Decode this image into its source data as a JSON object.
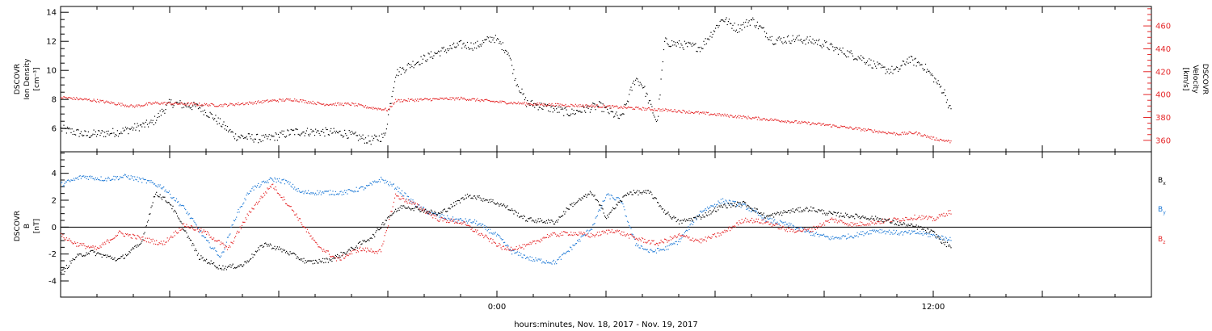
{
  "chart_data": [
    {
      "type": "scatter",
      "panel": "top",
      "left_axis_label_lines": [
        "DSCOVR",
        "Ion Density",
        "[cm⁻³]"
      ],
      "right_axis_label_lines": [
        "DSCOVR",
        "Velocity",
        "[km/s]"
      ],
      "x_range_hours": [
        -12,
        18
      ],
      "left_ylim": [
        4.4,
        14.4
      ],
      "right_ylim": [
        350,
        477
      ],
      "left_ticks": [
        "6",
        "8",
        "10",
        "12",
        "14"
      ],
      "right_ticks": [
        "360",
        "380",
        "400",
        "420",
        "440",
        "460"
      ],
      "series": [
        {
          "axis": "left",
          "color": "#000000",
          "x": [
            -12,
            -11.3,
            -10.4,
            -9.5,
            -9.0,
            -8.2,
            -7.8,
            -7.2,
            -6.4,
            -5.6,
            -4.8,
            -4.2,
            -3.5,
            -3.1,
            -2.8,
            -2.4,
            -1.6,
            -1.0,
            -0.6,
            -0.1,
            0.3,
            0.5,
            0.8,
            1.5,
            2.0,
            2.8,
            3.4,
            3.8,
            4.0,
            4.4,
            4.6,
            5.0,
            5.6,
            6.2,
            6.6,
            7.0,
            7.6,
            8.2,
            8.8,
            9.4,
            10.0,
            10.6,
            11.0,
            11.3,
            11.7,
            12.0,
            12.3,
            12.5
          ],
          "y": [
            6.0,
            5.6,
            5.8,
            6.4,
            7.8,
            7.5,
            6.8,
            5.5,
            5.3,
            5.8,
            5.8,
            5.7,
            5.2,
            5.5,
            9.8,
            10.4,
            11.3,
            11.8,
            11.7,
            12.3,
            11.3,
            9.4,
            7.8,
            7.4,
            7.1,
            7.6,
            6.7,
            9.5,
            9.0,
            6.4,
            12.0,
            11.8,
            11.6,
            13.6,
            12.9,
            13.5,
            12.1,
            12.2,
            12.0,
            11.4,
            10.9,
            10.1,
            10.0,
            10.8,
            10.4,
            9.5,
            8.5,
            7.0
          ]
        },
        {
          "axis": "right",
          "color": "#e5282a",
          "x": [
            -12,
            -11,
            -10,
            -9.4,
            -8.4,
            -7.6,
            -6.8,
            -6.2,
            -5.6,
            -4.8,
            -4.0,
            -3.5,
            -3.0,
            -2.8,
            -2.0,
            -1.0,
            0.0,
            1.0,
            2.0,
            3.0,
            4.0,
            5.0,
            6.0,
            7.0,
            8.0,
            9.0,
            10.0,
            11.0,
            11.5,
            12.0,
            12.5
          ],
          "y": [
            398,
            395,
            390,
            393,
            392,
            391,
            393,
            395,
            396,
            392,
            392,
            389,
            387,
            395,
            396,
            397,
            394,
            392,
            391,
            390,
            388,
            386,
            383,
            380,
            377,
            374,
            370,
            366,
            367,
            362,
            359
          ]
        }
      ]
    },
    {
      "type": "scatter",
      "panel": "bottom",
      "left_axis_label_lines": [
        "DSCOVR",
        "B",
        "[nT]"
      ],
      "x_range_hours": [
        -12,
        18
      ],
      "ylim": [
        -5.2,
        5.6
      ],
      "y_ticks": [
        "-4",
        "-2",
        "0",
        "2",
        "4"
      ],
      "x_tick_labels": [
        "0:00",
        "12:00"
      ],
      "xlabel": "hours:minutes, Nov. 18, 2017 - Nov. 19, 2017",
      "legend_entries": [
        {
          "label": "B",
          "sub": "x",
          "color": "#000000"
        },
        {
          "label": "B",
          "sub": "y",
          "color": "#1f7ad6"
        },
        {
          "label": "B",
          "sub": "z",
          "color": "#e5282a"
        }
      ],
      "series": [
        {
          "name": "Bx",
          "color": "#000000",
          "x": [
            -12,
            -11.6,
            -11.2,
            -10.4,
            -9.8,
            -9.4,
            -9.0,
            -8.2,
            -7.6,
            -7.0,
            -6.4,
            -5.8,
            -5.2,
            -4.6,
            -4.0,
            -3.4,
            -3.0,
            -2.6,
            -2.2,
            -1.6,
            -0.8,
            -0.2,
            0.2,
            0.8,
            1.6,
            2.0,
            2.6,
            3.0,
            3.6,
            4.2,
            4.6,
            5.0,
            5.6,
            6.2,
            6.8,
            7.4,
            8.0,
            8.6,
            9.2,
            10.0,
            10.6,
            11.0,
            11.6,
            12.0,
            12.3,
            12.5
          ],
          "y": [
            -3.4,
            -2.2,
            -1.8,
            -2.4,
            -1.2,
            2.6,
            1.8,
            -2.2,
            -3.0,
            -2.8,
            -1.2,
            -1.8,
            -2.6,
            -2.4,
            -1.6,
            -0.6,
            0.8,
            1.6,
            1.4,
            1.0,
            2.4,
            2.0,
            1.6,
            0.6,
            0.4,
            1.6,
            2.6,
            0.8,
            2.6,
            2.6,
            1.2,
            0.4,
            0.8,
            1.6,
            1.8,
            0.8,
            1.2,
            1.4,
            1.0,
            0.8,
            0.6,
            0.3,
            0.0,
            -0.4,
            -1.2,
            -1.4
          ]
        },
        {
          "name": "By",
          "color": "#1f7ad6",
          "x": [
            -12,
            -11.8,
            -11.4,
            -10.8,
            -10.2,
            -9.6,
            -9.2,
            -8.6,
            -8.0,
            -7.6,
            -7.2,
            -6.8,
            -6.2,
            -5.8,
            -5.4,
            -4.8,
            -4.2,
            -3.6,
            -3.2,
            -2.8,
            -2.2,
            -1.8,
            -1.2,
            -0.6,
            0.0,
            0.4,
            1.0,
            1.6,
            2.0,
            2.6,
            3.0,
            3.4,
            3.8,
            4.2,
            4.6,
            5.0,
            5.6,
            6.2,
            6.8,
            7.4,
            8.0,
            8.6,
            9.2,
            9.8,
            10.4,
            11.0,
            11.6,
            12.0,
            12.3,
            12.5
          ],
          "y": [
            3.2,
            3.4,
            3.8,
            3.6,
            3.8,
            3.4,
            3.0,
            1.4,
            -1.0,
            -2.2,
            0.8,
            2.8,
            3.6,
            3.4,
            2.6,
            2.6,
            2.6,
            3.0,
            3.6,
            3.0,
            1.6,
            1.0,
            0.6,
            0.4,
            -0.6,
            -1.8,
            -2.4,
            -2.6,
            -1.6,
            0.0,
            2.4,
            2.0,
            -1.2,
            -1.8,
            -1.6,
            -1.0,
            1.2,
            2.0,
            1.6,
            0.6,
            0.2,
            -0.4,
            -0.8,
            -0.6,
            -0.2,
            -0.4,
            -0.4,
            -0.6,
            -0.8,
            -0.8
          ]
        },
        {
          "name": "Bz",
          "color": "#e5282a",
          "x": [
            -12,
            -11.6,
            -11.0,
            -10.4,
            -9.8,
            -9.2,
            -8.6,
            -8.0,
            -7.4,
            -6.8,
            -6.2,
            -5.6,
            -5.0,
            -4.4,
            -3.8,
            -3.2,
            -2.8,
            -2.2,
            -1.6,
            -1.0,
            -0.4,
            0.2,
            0.8,
            1.4,
            2.0,
            2.6,
            3.2,
            3.8,
            4.4,
            5.0,
            5.6,
            6.2,
            6.8,
            7.4,
            8.0,
            8.6,
            9.2,
            9.8,
            10.4,
            11.0,
            11.6,
            12.0,
            12.3,
            12.5
          ],
          "y": [
            -0.6,
            -1.2,
            -1.6,
            -0.4,
            -0.8,
            -1.2,
            0.2,
            -0.4,
            -1.6,
            1.2,
            3.2,
            1.2,
            -1.2,
            -2.4,
            -1.6,
            -1.8,
            2.4,
            1.6,
            0.6,
            0.4,
            -0.6,
            -1.6,
            -1.4,
            -0.6,
            -0.4,
            -0.6,
            -0.2,
            -0.8,
            -1.2,
            -0.6,
            -1.0,
            -0.4,
            0.6,
            0.4,
            -0.2,
            -0.2,
            0.6,
            0.2,
            0.4,
            0.6,
            0.8,
            0.6,
            1.0,
            1.2
          ]
        }
      ]
    }
  ]
}
